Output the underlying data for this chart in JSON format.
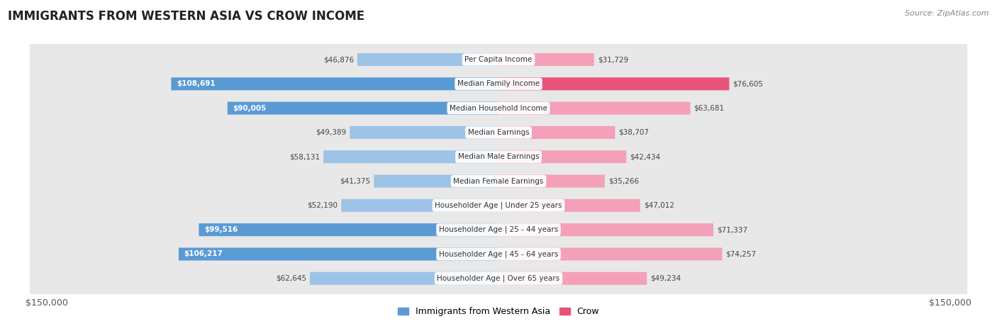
{
  "title": "IMMIGRANTS FROM WESTERN ASIA VS CROW INCOME",
  "source": "Source: ZipAtlas.com",
  "categories": [
    "Per Capita Income",
    "Median Family Income",
    "Median Household Income",
    "Median Earnings",
    "Median Male Earnings",
    "Median Female Earnings",
    "Householder Age | Under 25 years",
    "Householder Age | 25 - 44 years",
    "Householder Age | 45 - 64 years",
    "Householder Age | Over 65 years"
  ],
  "left_values": [
    46876,
    108691,
    90005,
    49389,
    58131,
    41375,
    52190,
    99516,
    106217,
    62645
  ],
  "right_values": [
    31729,
    76605,
    63681,
    38707,
    42434,
    35266,
    47012,
    71337,
    74257,
    49234
  ],
  "left_labels": [
    "$46,876",
    "$108,691",
    "$90,005",
    "$49,389",
    "$58,131",
    "$41,375",
    "$52,190",
    "$99,516",
    "$106,217",
    "$62,645"
  ],
  "right_labels": [
    "$31,729",
    "$76,605",
    "$63,681",
    "$38,707",
    "$42,434",
    "$35,266",
    "$47,012",
    "$71,337",
    "$74,257",
    "$49,234"
  ],
  "max_value": 150000,
  "left_color_strong": "#5b9bd5",
  "left_color_light": "#9dc3e6",
  "right_color_strong": "#e8537a",
  "right_color_light": "#f4a0b9",
  "threshold": 75000,
  "bar_height": 0.52,
  "legend_left_label": "Immigrants from Western Asia",
  "legend_right_label": "Crow",
  "xlabel_left": "$150,000",
  "xlabel_right": "$150,000",
  "row_colors": [
    "#f2f2f2",
    "#e8e8e8"
  ]
}
